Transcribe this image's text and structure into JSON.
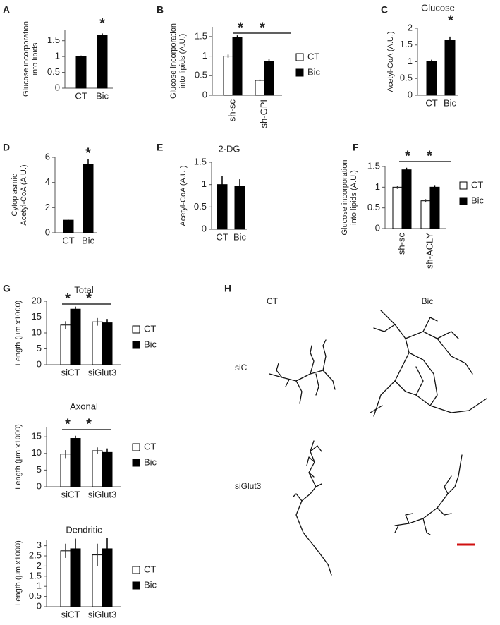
{
  "chart_data": [
    {
      "type": "bar",
      "panel": "A",
      "ylabel": [
        "Glucose incorporation",
        "into lipids"
      ],
      "categories": [
        "CT",
        "Bic"
      ],
      "values": [
        1.0,
        1.68
      ],
      "errors": [
        0.03,
        0.05
      ],
      "color": "#000000",
      "ylim": [
        0,
        1.85
      ],
      "yticks": [
        0,
        0.5,
        1,
        1.5
      ],
      "annotations": [
        "*"
      ]
    },
    {
      "type": "bar",
      "panel": "B",
      "ylabel": [
        "Glucose incorporation",
        "into lipids (A.U.)"
      ],
      "categories": [
        "sh-sc",
        "sh-GPI"
      ],
      "xtick_rotation": 90,
      "series": [
        {
          "name": "CT",
          "color": "#ffffff",
          "values": [
            1.0,
            0.38
          ],
          "errors": [
            0.04,
            0.02
          ]
        },
        {
          "name": "Bic",
          "color": "#000000",
          "values": [
            1.48,
            0.87
          ],
          "errors": [
            0.05,
            0.06
          ]
        }
      ],
      "ylim": [
        0,
        1.75
      ],
      "yticks": [
        0,
        0.5,
        1,
        1.5
      ],
      "legend": "right",
      "annotations": [
        "*",
        "*"
      ]
    },
    {
      "type": "bar",
      "panel": "C",
      "title": "Glucose",
      "ylabel": [
        "Acetyl-CoA (A.U.)"
      ],
      "categories": [
        "CT",
        "Bic"
      ],
      "values": [
        1.0,
        1.65
      ],
      "errors": [
        0.06,
        0.1
      ],
      "color": "#000000",
      "ylim": [
        0,
        2
      ],
      "yticks": [
        0,
        0.5,
        1,
        1.5,
        2
      ],
      "annotations": [
        "*"
      ]
    },
    {
      "type": "bar",
      "panel": "D",
      "ylabel": [
        "Cytoplasmic",
        "Acetyl-CoA (A.U.)"
      ],
      "categories": [
        "CT",
        "Bic"
      ],
      "values": [
        1.0,
        5.45
      ],
      "errors": [
        0.03,
        0.4
      ],
      "color": "#000000",
      "ylim": [
        0,
        6
      ],
      "yticks": [
        0,
        2,
        4,
        6
      ],
      "annotations": [
        "*"
      ]
    },
    {
      "type": "bar",
      "panel": "E",
      "title": "2-DG",
      "ylabel": [
        "Acetyl-CoA (A.U.)"
      ],
      "categories": [
        "CT",
        "Bic"
      ],
      "values": [
        1.0,
        0.97
      ],
      "errors": [
        0.2,
        0.15
      ],
      "color": "#000000",
      "ylim": [
        0,
        1.5
      ],
      "yticks": [
        0,
        0.5,
        1,
        1.5
      ]
    },
    {
      "type": "bar",
      "panel": "F",
      "ylabel": [
        "Glucose incorporation",
        "into lipids (A.U.)"
      ],
      "categories": [
        "sh-sc",
        "sh-ACLY"
      ],
      "xtick_rotation": 90,
      "series": [
        {
          "name": "CT",
          "color": "#ffffff",
          "values": [
            1.0,
            0.67
          ],
          "errors": [
            0.04,
            0.04
          ]
        },
        {
          "name": "Bic",
          "color": "#000000",
          "values": [
            1.42,
            1.0
          ],
          "errors": [
            0.05,
            0.05
          ]
        }
      ],
      "ylim": [
        0,
        1.5
      ],
      "yticks": [
        0,
        0.5,
        1,
        1.5
      ],
      "legend": "right",
      "annotations": [
        "*",
        "*"
      ]
    },
    {
      "type": "bar",
      "panel": "G",
      "title": "Total",
      "ylabel": [
        "Length (μm x1000)"
      ],
      "categories": [
        "siCT",
        "siGlut3"
      ],
      "series": [
        {
          "name": "CT",
          "color": "#ffffff",
          "values": [
            12.5,
            13.5
          ],
          "errors": [
            1.2,
            1.2
          ]
        },
        {
          "name": "Bic",
          "color": "#000000",
          "values": [
            17.5,
            13.2
          ],
          "errors": [
            0.8,
            1.2
          ]
        }
      ],
      "ylim": [
        0,
        20
      ],
      "yticks": [
        0,
        5,
        10,
        15,
        20
      ],
      "legend": "right",
      "annotations": [
        "*",
        "*"
      ]
    },
    {
      "type": "bar",
      "title": "Axonal",
      "ylabel": [
        "Length (μm x1000)"
      ],
      "categories": [
        "siCT",
        "siGlut3"
      ],
      "series": [
        {
          "name": "CT",
          "color": "#ffffff",
          "values": [
            9.8,
            10.8
          ],
          "errors": [
            1.2,
            1.0
          ]
        },
        {
          "name": "Bic",
          "color": "#000000",
          "values": [
            14.5,
            10.3
          ],
          "errors": [
            0.8,
            1.2
          ]
        }
      ],
      "ylim": [
        0,
        18
      ],
      "yticks": [
        0,
        5,
        10,
        15
      ],
      "legend": "right",
      "annotations": [
        "*",
        "*"
      ]
    },
    {
      "type": "bar",
      "title": "Dendritic",
      "ylabel": [
        "Length (μm x1000)"
      ],
      "categories": [
        "siCT",
        "siGlut3"
      ],
      "series": [
        {
          "name": "CT",
          "color": "#ffffff",
          "values": [
            2.75,
            2.55
          ],
          "errors": [
            0.35,
            0.55
          ]
        },
        {
          "name": "Bic",
          "color": "#000000",
          "values": [
            2.85,
            2.85
          ],
          "errors": [
            0.5,
            0.55
          ]
        }
      ],
      "ylim": [
        0,
        3.3
      ],
      "yticks": [
        0,
        0.5,
        1,
        1.5,
        2,
        2.5,
        3
      ],
      "legend": "right"
    }
  ],
  "panel_h": {
    "label": "H",
    "columns": [
      "CT",
      "Bic"
    ],
    "rows": [
      "siC",
      "siGlut3"
    ]
  }
}
